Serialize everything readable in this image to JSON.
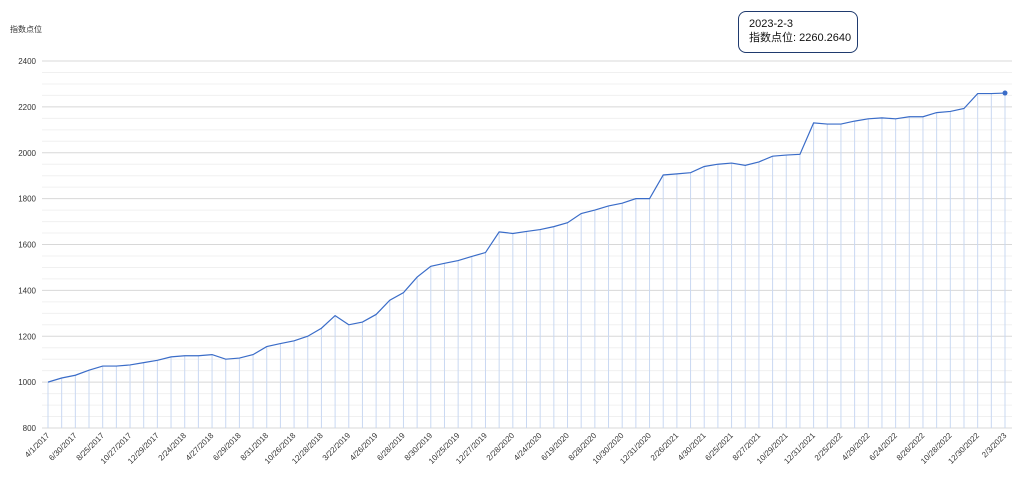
{
  "chart_data": {
    "type": "line",
    "y_axis_label": "指数点位",
    "categories": [
      "4/1/2017",
      null,
      "6/30/2017",
      null,
      "8/25/2017",
      null,
      "10/27/2017",
      null,
      "12/29/2017",
      null,
      "2/24/2018",
      null,
      "4/27/2018",
      null,
      "6/29/2018",
      null,
      "8/31/2018",
      null,
      "10/26/2018",
      null,
      "12/28/2018",
      null,
      "3/22/2019",
      null,
      "4/26/2019",
      null,
      "6/28/2019",
      null,
      "8/30/2019",
      null,
      "10/25/2019",
      null,
      "12/27/2019",
      null,
      "2/28/2020",
      null,
      "4/24/2020",
      null,
      "6/19/2020",
      null,
      "8/28/2020",
      null,
      "10/30/2020",
      null,
      "12/31/2020",
      null,
      "2/26/2021",
      null,
      "4/30/2021",
      null,
      "6/25/2021",
      null,
      "8/27/2021",
      null,
      "10/29/2021",
      null,
      "12/31/2021",
      null,
      "2/25/2022",
      null,
      "4/29/2022",
      null,
      "6/24/2022",
      null,
      "8/26/2022",
      null,
      "10/28/2022",
      null,
      "12/30/2022",
      null,
      "2/3/2023"
    ],
    "series": [
      {
        "name": "指数点位",
        "color": "#3a6cc8",
        "values": [
          1000,
          1018,
          1030,
          1052,
          1070,
          1070,
          1075,
          1085,
          1095,
          1110,
          1115,
          1115,
          1120,
          1100,
          1105,
          1120,
          1155,
          1168,
          1180,
          1200,
          1235,
          1290,
          1250,
          1262,
          1295,
          1357,
          1390,
          1458,
          1505,
          1518,
          1530,
          1548,
          1565,
          1655,
          1648,
          1657,
          1665,
          1678,
          1695,
          1735,
          1750,
          1768,
          1780,
          1800,
          1800,
          1903,
          1908,
          1913,
          1940,
          1950,
          1955,
          1945,
          1960,
          1985,
          1990,
          1993,
          2130,
          2125,
          2125,
          2138,
          2148,
          2152,
          2148,
          2157,
          2157,
          2175,
          2180,
          2193,
          2258,
          2258,
          2260.264
        ]
      }
    ],
    "ylim": [
      800,
      2400
    ],
    "yticks": [
      800,
      1000,
      1200,
      1400,
      1600,
      1800,
      2000,
      2200,
      2400
    ],
    "grid": true,
    "tooltip": {
      "title": "2023-2-3",
      "text": "指数点位: 2260.2640"
    }
  }
}
